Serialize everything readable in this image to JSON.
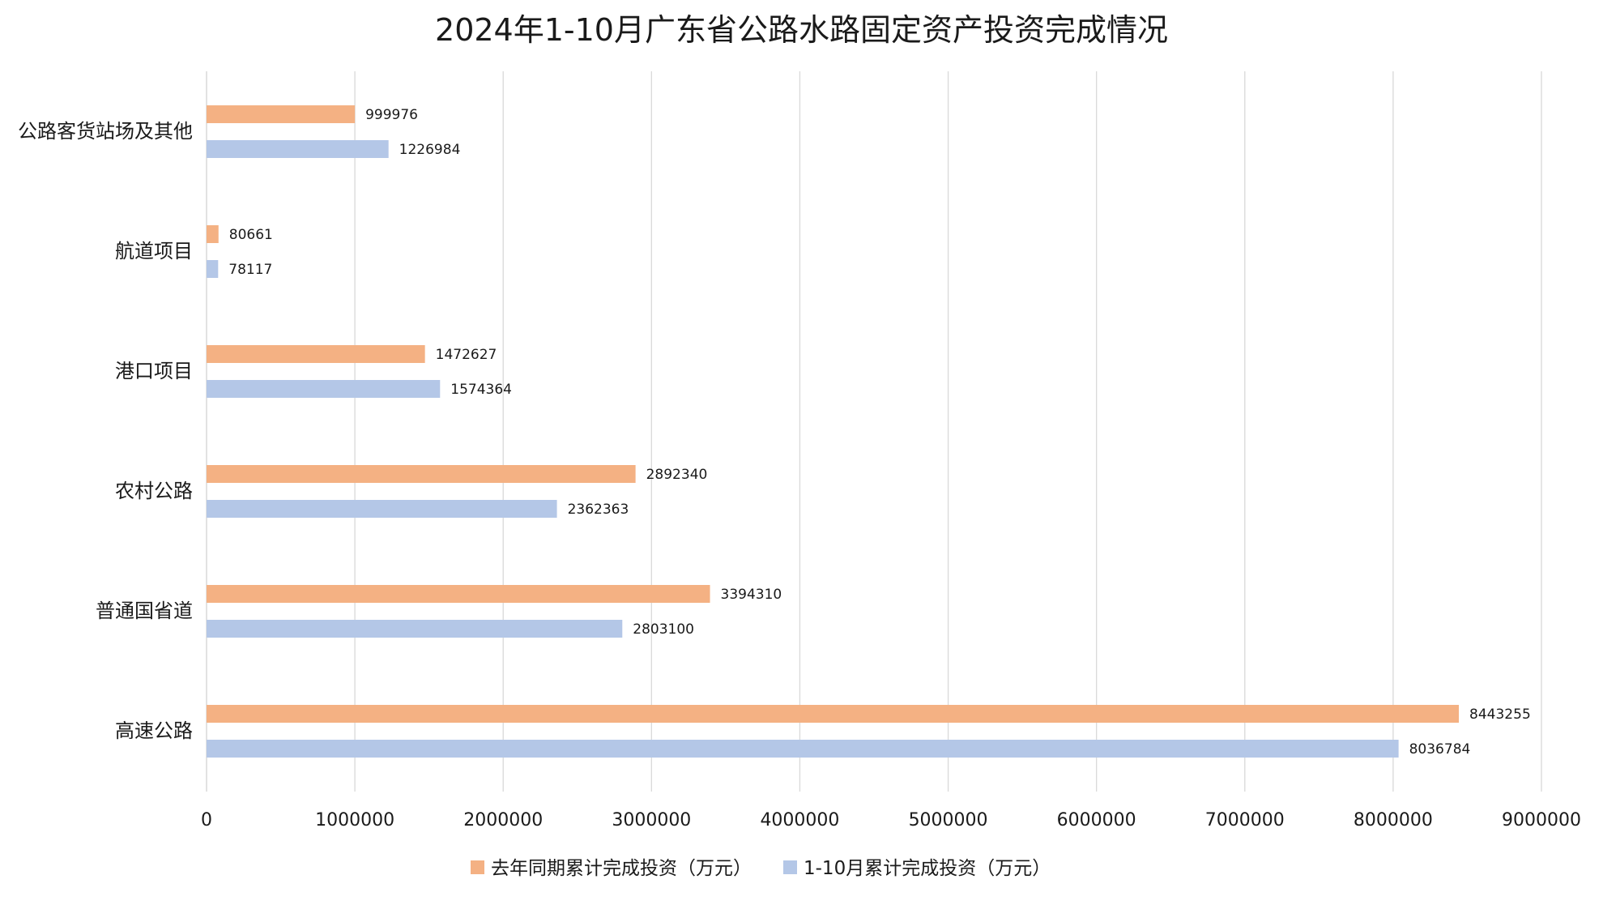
{
  "chart_data": {
    "type": "bar",
    "orientation": "horizontal",
    "title": "2024年1-10月广东省公路水路固定资产投资完成情况",
    "xlabel": "",
    "ylabel": "",
    "xlim": [
      0,
      9000000
    ],
    "x_ticks": [
      "0",
      "1000000",
      "2000000",
      "3000000",
      "4000000",
      "5000000",
      "6000000",
      "7000000",
      "8000000",
      "9000000"
    ],
    "x_tick_values": [
      0,
      1000000,
      2000000,
      3000000,
      4000000,
      5000000,
      6000000,
      7000000,
      8000000,
      9000000
    ],
    "grid": "vertical",
    "legend_position": "bottom",
    "categories": [
      "公路客货站场及其他",
      "航道项目",
      "港口项目",
      "农村公路",
      "普通国省道",
      "高速公路"
    ],
    "series": [
      {
        "name": "去年同期累计完成投资（万元）",
        "color": "#F4B183",
        "values": [
          999976,
          80661,
          1472627,
          2892340,
          3394310,
          8443255
        ]
      },
      {
        "name": "1-10月累计完成投资（万元）",
        "color": "#B4C7E7",
        "values": [
          1226984,
          78117,
          1574364,
          2362363,
          2803100,
          8036784
        ]
      }
    ],
    "grid_color": "#d9d9d9",
    "axis_color": "#d9d9d9"
  }
}
